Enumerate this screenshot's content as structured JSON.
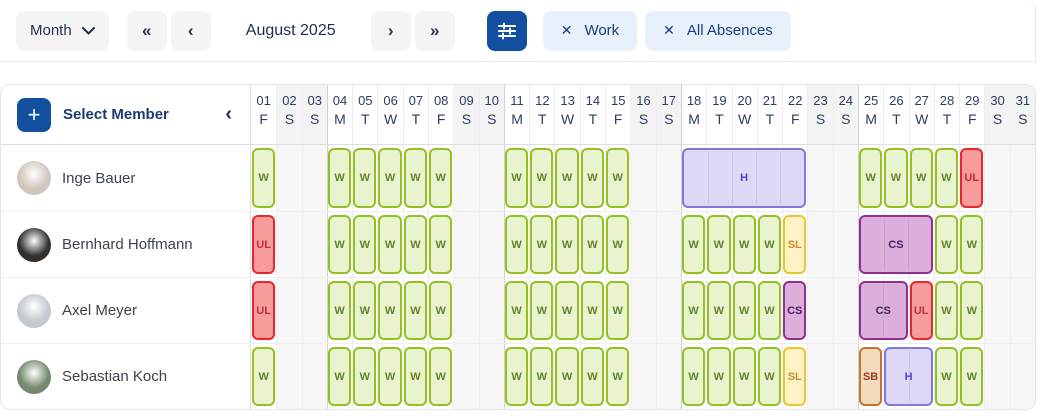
{
  "toolbar": {
    "view_dropdown": {
      "label": "Month"
    },
    "nav": {
      "prev_year": "«",
      "prev_month": "‹",
      "next_month": "›",
      "next_year": "»"
    },
    "period_label": "August 2025",
    "chips": [
      {
        "label": "Work",
        "close_icon": "✕"
      },
      {
        "label": "All Absences",
        "close_icon": "✕"
      }
    ],
    "colors": {
      "primary_blue": "#124f9e",
      "chip_bg": "#e8f0fb",
      "chip_text": "#17407a"
    }
  },
  "sidebar": {
    "add_button_label": "+",
    "select_member_label": "Select Member",
    "collapse_icon": "‹"
  },
  "calendar": {
    "days": [
      {
        "num": "01",
        "dow": "F",
        "weekend": false
      },
      {
        "num": "02",
        "dow": "S",
        "weekend": true
      },
      {
        "num": "03",
        "dow": "S",
        "weekend": true
      },
      {
        "num": "04",
        "dow": "M",
        "weekend": false
      },
      {
        "num": "05",
        "dow": "T",
        "weekend": false
      },
      {
        "num": "06",
        "dow": "W",
        "weekend": false
      },
      {
        "num": "07",
        "dow": "T",
        "weekend": false
      },
      {
        "num": "08",
        "dow": "F",
        "weekend": false
      },
      {
        "num": "09",
        "dow": "S",
        "weekend": true
      },
      {
        "num": "10",
        "dow": "S",
        "weekend": true
      },
      {
        "num": "11",
        "dow": "M",
        "weekend": false
      },
      {
        "num": "12",
        "dow": "T",
        "weekend": false
      },
      {
        "num": "13",
        "dow": "W",
        "weekend": false
      },
      {
        "num": "14",
        "dow": "T",
        "weekend": false
      },
      {
        "num": "15",
        "dow": "F",
        "weekend": false
      },
      {
        "num": "16",
        "dow": "S",
        "weekend": true
      },
      {
        "num": "17",
        "dow": "S",
        "weekend": true
      },
      {
        "num": "18",
        "dow": "M",
        "weekend": false
      },
      {
        "num": "19",
        "dow": "T",
        "weekend": false
      },
      {
        "num": "20",
        "dow": "W",
        "weekend": false
      },
      {
        "num": "21",
        "dow": "T",
        "weekend": false
      },
      {
        "num": "22",
        "dow": "F",
        "weekend": false
      },
      {
        "num": "23",
        "dow": "S",
        "weekend": true
      },
      {
        "num": "24",
        "dow": "S",
        "weekend": true
      },
      {
        "num": "25",
        "dow": "M",
        "weekend": false
      },
      {
        "num": "26",
        "dow": "T",
        "weekend": false
      },
      {
        "num": "27",
        "dow": "W",
        "weekend": false
      },
      {
        "num": "28",
        "dow": "T",
        "weekend": false
      },
      {
        "num": "29",
        "dow": "F",
        "weekend": false
      },
      {
        "num": "30",
        "dow": "S",
        "weekend": true
      },
      {
        "num": "31",
        "dow": "S",
        "weekend": true
      }
    ],
    "entry_types": {
      "W": {
        "bg": "#eaf3cf",
        "border": "#94c122",
        "text": "#5f8527"
      },
      "UL": {
        "bg": "#f79b9b",
        "border": "#e6272e",
        "text": "#bf3038"
      },
      "H": {
        "bg": "#dcd8f6",
        "border": "#8478dd",
        "text": "#5346c9"
      },
      "CS": {
        "bg": "#dcafdb",
        "border": "#922d92",
        "text": "#41245c"
      },
      "SL": {
        "bg": "#fdf2c6",
        "border": "#e9c52e",
        "text": "#cf8a31"
      },
      "SB": {
        "bg": "#f2dabd",
        "border": "#c1732f",
        "text": "#a03a24"
      }
    },
    "rows": [
      {
        "member": "Inge Bauer",
        "avatar_color": "#cfc6bd",
        "entries": [
          {
            "start": 1,
            "span": 1,
            "type": "W",
            "label": "W"
          },
          {
            "start": 4,
            "span": 1,
            "type": "W",
            "label": "W"
          },
          {
            "start": 5,
            "span": 1,
            "type": "W",
            "label": "W"
          },
          {
            "start": 6,
            "span": 1,
            "type": "W",
            "label": "W"
          },
          {
            "start": 7,
            "span": 1,
            "type": "W",
            "label": "W"
          },
          {
            "start": 8,
            "span": 1,
            "type": "W",
            "label": "W"
          },
          {
            "start": 11,
            "span": 1,
            "type": "W",
            "label": "W"
          },
          {
            "start": 12,
            "span": 1,
            "type": "W",
            "label": "W"
          },
          {
            "start": 13,
            "span": 1,
            "type": "W",
            "label": "W"
          },
          {
            "start": 14,
            "span": 1,
            "type": "W",
            "label": "W"
          },
          {
            "start": 15,
            "span": 1,
            "type": "W",
            "label": "W"
          },
          {
            "start": 18,
            "span": 5,
            "type": "H",
            "label": "H"
          },
          {
            "start": 25,
            "span": 1,
            "type": "W",
            "label": "W"
          },
          {
            "start": 26,
            "span": 1,
            "type": "W",
            "label": "W"
          },
          {
            "start": 27,
            "span": 1,
            "type": "W",
            "label": "W"
          },
          {
            "start": 28,
            "span": 1,
            "type": "W",
            "label": "W"
          },
          {
            "start": 29,
            "span": 1,
            "type": "UL",
            "label": "UL"
          }
        ]
      },
      {
        "member": "Bernhard Hoffmann",
        "avatar_color": "#35302c",
        "entries": [
          {
            "start": 1,
            "span": 1,
            "type": "UL",
            "label": "UL"
          },
          {
            "start": 4,
            "span": 1,
            "type": "W",
            "label": "W"
          },
          {
            "start": 5,
            "span": 1,
            "type": "W",
            "label": "W"
          },
          {
            "start": 6,
            "span": 1,
            "type": "W",
            "label": "W"
          },
          {
            "start": 7,
            "span": 1,
            "type": "W",
            "label": "W"
          },
          {
            "start": 8,
            "span": 1,
            "type": "W",
            "label": "W"
          },
          {
            "start": 11,
            "span": 1,
            "type": "W",
            "label": "W"
          },
          {
            "start": 12,
            "span": 1,
            "type": "W",
            "label": "W"
          },
          {
            "start": 13,
            "span": 1,
            "type": "W",
            "label": "W"
          },
          {
            "start": 14,
            "span": 1,
            "type": "W",
            "label": "W"
          },
          {
            "start": 15,
            "span": 1,
            "type": "W",
            "label": "W"
          },
          {
            "start": 18,
            "span": 1,
            "type": "W",
            "label": "W"
          },
          {
            "start": 19,
            "span": 1,
            "type": "W",
            "label": "W"
          },
          {
            "start": 20,
            "span": 1,
            "type": "W",
            "label": "W"
          },
          {
            "start": 21,
            "span": 1,
            "type": "W",
            "label": "W"
          },
          {
            "start": 22,
            "span": 1,
            "type": "SL",
            "label": "SL"
          },
          {
            "start": 25,
            "span": 3,
            "type": "CS",
            "label": "CS"
          },
          {
            "start": 28,
            "span": 1,
            "type": "W",
            "label": "W"
          },
          {
            "start": 29,
            "span": 1,
            "type": "W",
            "label": "W"
          }
        ]
      },
      {
        "member": "Axel Meyer",
        "avatar_color": "#c3c9cf",
        "entries": [
          {
            "start": 1,
            "span": 1,
            "type": "UL",
            "label": "UL"
          },
          {
            "start": 4,
            "span": 1,
            "type": "W",
            "label": "W"
          },
          {
            "start": 5,
            "span": 1,
            "type": "W",
            "label": "W"
          },
          {
            "start": 6,
            "span": 1,
            "type": "W",
            "label": "W"
          },
          {
            "start": 7,
            "span": 1,
            "type": "W",
            "label": "W"
          },
          {
            "start": 8,
            "span": 1,
            "type": "W",
            "label": "W"
          },
          {
            "start": 11,
            "span": 1,
            "type": "W",
            "label": "W"
          },
          {
            "start": 12,
            "span": 1,
            "type": "W",
            "label": "W"
          },
          {
            "start": 13,
            "span": 1,
            "type": "W",
            "label": "W"
          },
          {
            "start": 14,
            "span": 1,
            "type": "W",
            "label": "W"
          },
          {
            "start": 15,
            "span": 1,
            "type": "W",
            "label": "W"
          },
          {
            "start": 18,
            "span": 1,
            "type": "W",
            "label": "W"
          },
          {
            "start": 19,
            "span": 1,
            "type": "W",
            "label": "W"
          },
          {
            "start": 20,
            "span": 1,
            "type": "W",
            "label": "W"
          },
          {
            "start": 21,
            "span": 1,
            "type": "W",
            "label": "W"
          },
          {
            "start": 22,
            "span": 1,
            "type": "CS",
            "label": "CS"
          },
          {
            "start": 25,
            "span": 2,
            "type": "CS",
            "label": "CS"
          },
          {
            "start": 27,
            "span": 1,
            "type": "UL",
            "label": "UL"
          },
          {
            "start": 28,
            "span": 1,
            "type": "W",
            "label": "W"
          },
          {
            "start": 29,
            "span": 1,
            "type": "W",
            "label": "W"
          }
        ]
      },
      {
        "member": "Sebastian Koch",
        "avatar_color": "#77886f",
        "entries": [
          {
            "start": 1,
            "span": 1,
            "type": "W",
            "label": "W"
          },
          {
            "start": 4,
            "span": 1,
            "type": "W",
            "label": "W"
          },
          {
            "start": 5,
            "span": 1,
            "type": "W",
            "label": "W"
          },
          {
            "start": 6,
            "span": 1,
            "type": "W",
            "label": "W"
          },
          {
            "start": 7,
            "span": 1,
            "type": "W",
            "label": "W"
          },
          {
            "start": 8,
            "span": 1,
            "type": "W",
            "label": "W"
          },
          {
            "start": 11,
            "span": 1,
            "type": "W",
            "label": "W"
          },
          {
            "start": 12,
            "span": 1,
            "type": "W",
            "label": "W"
          },
          {
            "start": 13,
            "span": 1,
            "type": "W",
            "label": "W"
          },
          {
            "start": 14,
            "span": 1,
            "type": "W",
            "label": "W"
          },
          {
            "start": 15,
            "span": 1,
            "type": "W",
            "label": "W"
          },
          {
            "start": 18,
            "span": 1,
            "type": "W",
            "label": "W"
          },
          {
            "start": 19,
            "span": 1,
            "type": "W",
            "label": "W"
          },
          {
            "start": 20,
            "span": 1,
            "type": "W",
            "label": "W"
          },
          {
            "start": 21,
            "span": 1,
            "type": "W",
            "label": "W"
          },
          {
            "start": 22,
            "span": 1,
            "type": "SL",
            "label": "SL"
          },
          {
            "start": 25,
            "span": 1,
            "type": "SB",
            "label": "SB"
          },
          {
            "start": 26,
            "span": 2,
            "type": "H",
            "label": "H"
          },
          {
            "start": 28,
            "span": 1,
            "type": "W",
            "label": "W"
          },
          {
            "start": 29,
            "span": 1,
            "type": "W",
            "label": "W"
          }
        ]
      }
    ]
  }
}
